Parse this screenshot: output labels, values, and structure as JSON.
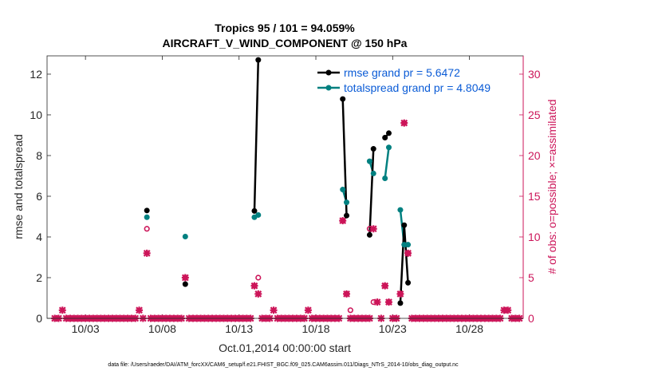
{
  "chart_data": {
    "type": "line",
    "title_line1": "Tropics 95 / 101 = 94.059%",
    "title_line2": "AIRCRAFT_V_WIND_COMPONENT @ 150 hPa",
    "xlabel": "Oct.01,2014 00:00:00 start",
    "ylabel_left": "rmse and totalspread",
    "ylabel_right": "# of obs: o=possible; ×=assimilated",
    "footer": "data file: /Users/raeder/DAI/ATM_forcXX/CAM6_setup/f.e21.FHIST_BGC.f09_025.CAM6assim.011/Diags_NTrS_2014-10/obs_diag_output.nc",
    "xlim": [
      0.5,
      31.5
    ],
    "ylim_left": [
      0,
      12.9
    ],
    "ylim_right": [
      0,
      32.25
    ],
    "xticks": [
      3,
      8,
      13,
      18,
      23,
      28
    ],
    "xtick_labels": [
      "10/03",
      "10/08",
      "10/13",
      "10/18",
      "10/23",
      "10/28"
    ],
    "yticks_left": [
      0,
      2,
      4,
      6,
      8,
      10,
      12
    ],
    "yticks_right": [
      0,
      5,
      10,
      15,
      20,
      25,
      30
    ],
    "legend_position": "top-right",
    "series": [
      {
        "name": "rmse grand pr = 5.6472",
        "color": "#000000",
        "axis": "left",
        "x": [
          7.0,
          9.5,
          14.0,
          14.25,
          19.75,
          20.0,
          21.5,
          21.75,
          22.5,
          22.75,
          23.5,
          23.75,
          24.0
        ],
        "y": [
          5.3,
          1.68,
          5.28,
          12.7,
          10.78,
          5.05,
          4.1,
          8.33,
          8.88,
          9.1,
          0.75,
          4.58,
          1.75
        ],
        "segments": [
          [
            2,
            3
          ],
          [
            4,
            5
          ],
          [
            6,
            7
          ],
          [
            8,
            9
          ],
          [
            10,
            11,
            12
          ]
        ]
      },
      {
        "name": "totalspread grand pr = 4.8049",
        "color": "#008080",
        "axis": "left",
        "x": [
          7.0,
          9.5,
          14.0,
          14.25,
          19.75,
          20.0,
          21.5,
          21.75,
          22.5,
          22.75,
          23.5,
          23.75,
          24.0
        ],
        "y": [
          4.97,
          4.02,
          4.97,
          5.08,
          6.33,
          5.7,
          7.72,
          7.12,
          6.88,
          8.4,
          5.33,
          3.62,
          3.62
        ],
        "segments": [
          [
            2,
            3
          ],
          [
            4,
            5
          ],
          [
            6,
            7
          ],
          [
            8,
            9
          ],
          [
            10,
            11,
            12
          ]
        ]
      },
      {
        "name": "possible obs",
        "color": "#cc1559",
        "axis": "right",
        "marker": "circle",
        "x": [
          7.0,
          9.5,
          14.0,
          14.25,
          19.75,
          20.0,
          20.25,
          21.5,
          21.75,
          22.5,
          22.75,
          23.5,
          23.75,
          24.0
        ],
        "y": [
          11,
          5,
          4,
          5,
          12,
          3,
          1,
          11,
          2,
          4,
          2,
          3,
          24,
          8
        ]
      },
      {
        "name": "assimilated obs",
        "color": "#cc1559",
        "axis": "right",
        "marker": "cross",
        "x": [
          1,
          1.25,
          1.5,
          1.75,
          2,
          2.25,
          2.5,
          2.75,
          3,
          3.25,
          3.5,
          3.75,
          4,
          4.25,
          4.5,
          4.75,
          5,
          5.25,
          5.5,
          5.75,
          6,
          6.25,
          6.5,
          6.75,
          7,
          7.25,
          7.5,
          7.75,
          8,
          8.25,
          8.5,
          8.75,
          9,
          9.25,
          9.5,
          9.75,
          10,
          10.25,
          10.5,
          10.75,
          11,
          11.25,
          11.5,
          11.75,
          12,
          12.25,
          12.5,
          12.75,
          13,
          13.25,
          13.5,
          13.75,
          14,
          14.25,
          14.5,
          14.75,
          15,
          15.25,
          15.5,
          15.75,
          16,
          16.25,
          16.5,
          16.75,
          17,
          17.25,
          17.5,
          17.75,
          18,
          18.25,
          18.5,
          18.75,
          19,
          19.25,
          19.5,
          19.75,
          20,
          20.25,
          20.5,
          20.75,
          21,
          21.25,
          21.5,
          21.75,
          22,
          22.25,
          22.5,
          22.75,
          23,
          23.25,
          23.5,
          23.75,
          24,
          24.25,
          24.5,
          24.75,
          25,
          25.25,
          25.5,
          25.75,
          26,
          26.25,
          26.5,
          26.75,
          27,
          27.25,
          27.5,
          27.75,
          28,
          28.25,
          28.5,
          28.75,
          29,
          29.25,
          29.5,
          29.75,
          30,
          30.25,
          30.5,
          30.75,
          31,
          31.25
        ],
        "y": [
          0,
          0,
          1,
          0,
          0,
          0,
          0,
          0,
          0,
          0,
          0,
          0,
          0,
          0,
          0,
          0,
          0,
          0,
          0,
          0,
          0,
          0,
          1,
          0,
          8,
          0,
          0,
          0,
          0,
          0,
          0,
          0,
          0,
          0,
          5,
          0,
          0,
          0,
          0,
          0,
          0,
          0,
          0,
          0,
          0,
          0,
          0,
          0,
          0,
          0,
          0,
          0,
          4,
          3,
          0,
          0,
          0,
          1,
          0,
          0,
          0,
          0,
          0,
          0,
          0,
          0,
          1,
          0,
          0,
          0,
          0,
          0,
          0,
          0,
          0,
          12,
          3,
          0,
          0,
          0,
          0,
          0,
          0,
          11,
          2,
          0,
          4,
          2,
          0,
          0,
          3,
          24,
          8,
          0,
          0,
          0,
          0,
          0,
          0,
          0,
          0,
          0,
          0,
          0,
          0,
          0,
          0,
          0,
          0,
          0,
          0,
          0,
          0,
          0,
          0,
          0,
          0,
          1,
          1,
          0,
          0,
          0
        ]
      }
    ]
  }
}
